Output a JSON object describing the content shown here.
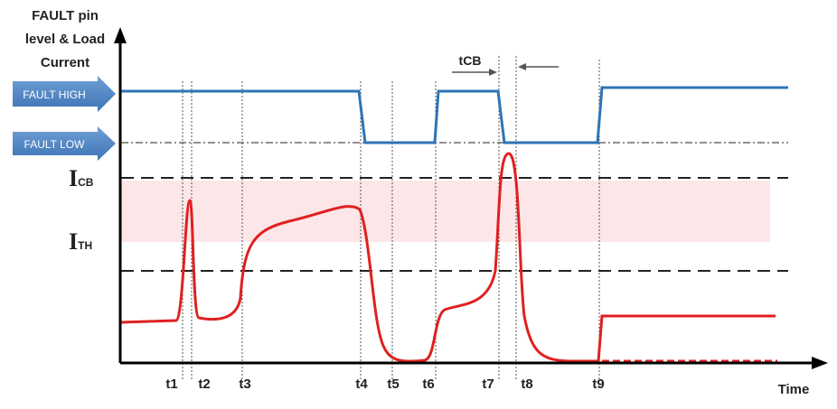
{
  "axis": {
    "y_label_lines": [
      "FAULT pin",
      "level & Load",
      "Current"
    ],
    "x_label": "Time"
  },
  "fault_levels": [
    "FAULT HIGH",
    "FAULT LOW"
  ],
  "current_levels": [
    {
      "main": "I",
      "sub": "CB"
    },
    {
      "main": "I",
      "sub": "TH"
    }
  ],
  "tcb_label": "tCB",
  "timing_marks": [
    "t1",
    "t2",
    "t3",
    "t4",
    "t5",
    "t6",
    "t7",
    "t8",
    "t9"
  ]
}
